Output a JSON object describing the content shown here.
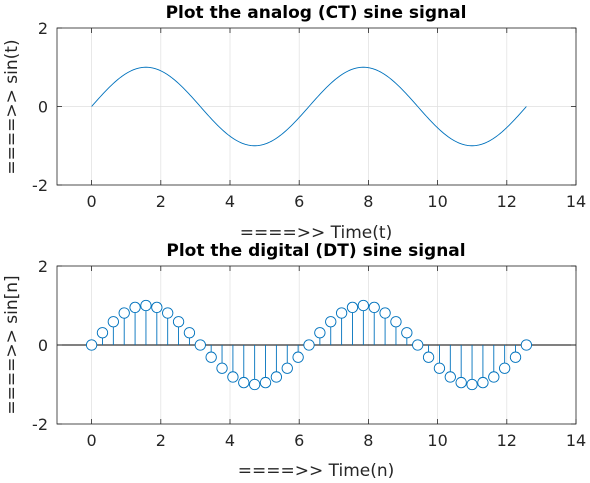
{
  "chart_data": [
    {
      "type": "line",
      "title": "Plot the analog (CT) sine signal",
      "xlabel": "====>>  Time(t)",
      "ylabel": "====>>  sin(t)",
      "xlim": [
        -1,
        14
      ],
      "ylim": [
        -2,
        2
      ],
      "xticks": [
        "0",
        "2",
        "4",
        "6",
        "8",
        "10",
        "12",
        "14"
      ],
      "yticks": [
        "-2",
        "0",
        "2"
      ],
      "grid": true,
      "color": "#0072BD",
      "x_range": [
        0,
        12.566
      ],
      "function": "sin(t)"
    },
    {
      "type": "stem",
      "title": "Plot the digital (DT) sine signal",
      "xlabel": "====>>  Time(n)",
      "ylabel": "====>>  sin[n]",
      "xlim": [
        -1,
        14
      ],
      "ylim": [
        -2,
        2
      ],
      "xticks": [
        "0",
        "2",
        "4",
        "6",
        "8",
        "10",
        "12",
        "14"
      ],
      "yticks": [
        "-2",
        "0",
        "2"
      ],
      "grid": true,
      "color": "#0072BD",
      "x": [
        0,
        0.3142,
        0.6283,
        0.9425,
        1.2566,
        1.5708,
        1.885,
        2.1991,
        2.5133,
        2.8274,
        3.1416,
        3.4558,
        3.7699,
        4.0841,
        4.3982,
        4.7124,
        5.0265,
        5.3407,
        5.6549,
        5.969,
        6.2832,
        6.5973,
        6.9115,
        7.2257,
        7.5398,
        7.854,
        8.1681,
        8.4823,
        8.7965,
        9.1106,
        9.4248,
        9.7389,
        10.0531,
        10.3673,
        10.6814,
        10.9956,
        11.3097,
        11.6239,
        11.9381,
        12.2522,
        12.5664
      ],
      "y": [
        0,
        0.309,
        0.5878,
        0.809,
        0.9511,
        1,
        0.9511,
        0.809,
        0.5878,
        0.309,
        0,
        -0.309,
        -0.5878,
        -0.809,
        -0.9511,
        -1,
        -0.9511,
        -0.809,
        -0.5878,
        -0.309,
        0,
        0.309,
        0.5878,
        0.809,
        0.9511,
        1,
        0.9511,
        0.809,
        0.5878,
        0.309,
        0,
        -0.309,
        -0.5878,
        -0.809,
        -0.9511,
        -1,
        -0.9511,
        -0.809,
        -0.5878,
        -0.309,
        0
      ]
    }
  ]
}
